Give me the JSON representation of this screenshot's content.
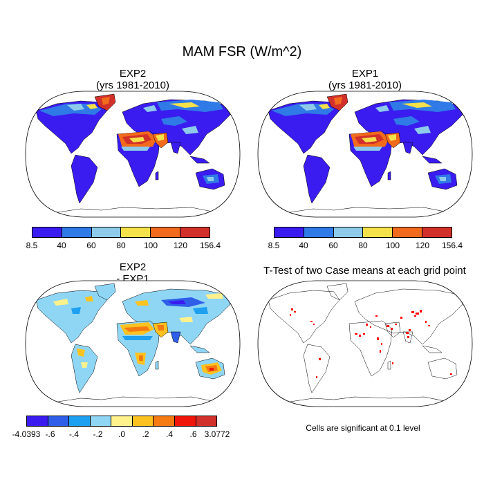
{
  "figure": {
    "title": "MAM FSR (W/m^2)"
  },
  "panels": {
    "exp2": {
      "title_line1": "EXP2",
      "title_line2": "(yrs 1981-2010)"
    },
    "exp1": {
      "title_line1": "EXP1",
      "title_line2": "(yrs 1981-2010)"
    },
    "diff": {
      "title_line1": "EXP2",
      "title_line2": "- EXP1"
    },
    "ttest": {
      "title": "T-Test of two Case means at each grid point",
      "note": "Cells are significant at 0.1 level"
    }
  },
  "colorbars": {
    "absolute": {
      "colors": [
        "#3a1cf0",
        "#2f7ae6",
        "#8ecbeb",
        "#f5e14a",
        "#f26a1b",
        "#d2302b"
      ],
      "labels": [
        "8.5",
        "40",
        "60",
        "80",
        "100",
        "120",
        "156.4"
      ]
    },
    "difference": {
      "colors": [
        "#3a1cf0",
        "#2f5fe8",
        "#1ea0f0",
        "#8fd6f5",
        "#fff18c",
        "#fcc21f",
        "#f57a12",
        "#f0150a",
        "#d2302b"
      ],
      "labels": [
        "-4.0393",
        "-.6",
        "-.4",
        "-.2",
        ".0",
        ".2",
        ".4",
        ".6",
        "3.0772"
      ]
    }
  },
  "colors": {
    "ocean": "#ffffff",
    "outline": "#000000",
    "significant": "#ff0000"
  }
}
